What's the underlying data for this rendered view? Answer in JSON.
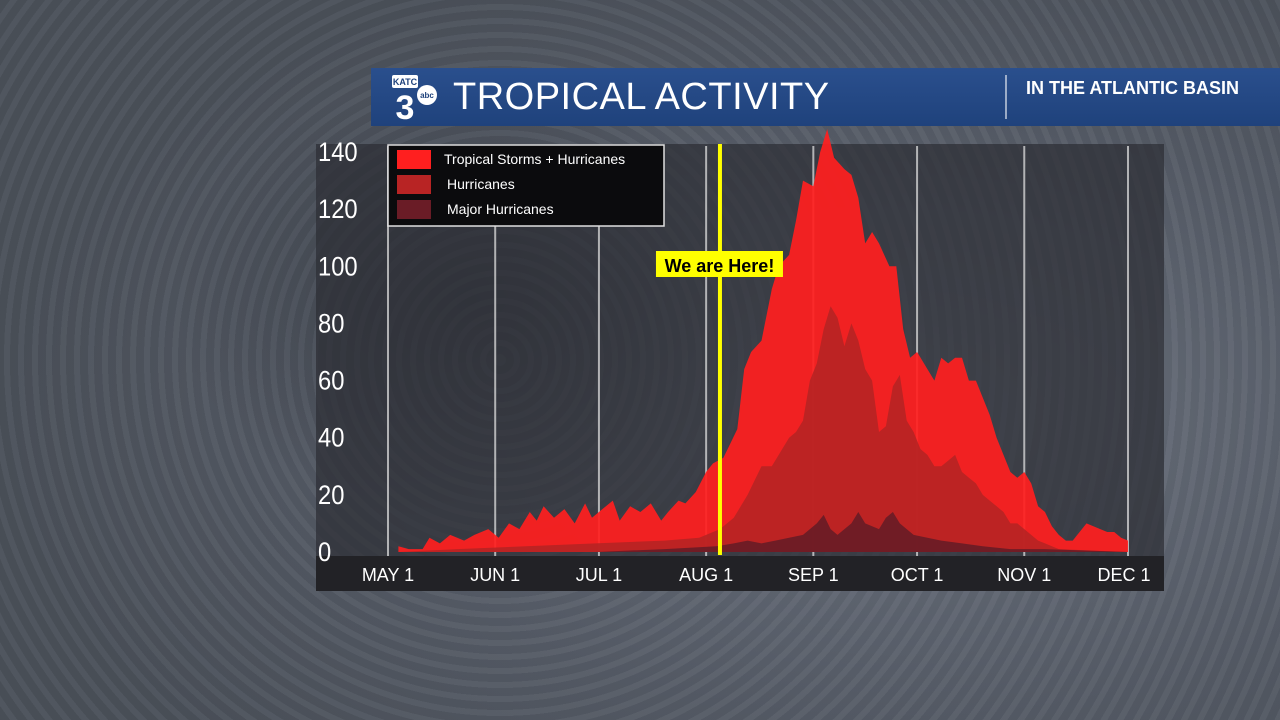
{
  "banner": {
    "title": "TROPICAL ACTIVITY",
    "subtitle": "IN THE ATLANTIC BASIN",
    "logo_text": "KATC",
    "logo_number": "3",
    "logo_network": "abc"
  },
  "colors": {
    "banner": "#1f427c",
    "tropical": "#ff1f1f",
    "hurricanes": "#b82424",
    "major": "#6a1c26",
    "marker": "#ffff00"
  },
  "chart_data": {
    "type": "area",
    "title": "",
    "xlabel": "",
    "ylabel": "",
    "ylim": [
      0,
      140
    ],
    "yticks": [
      "0",
      "20",
      "40",
      "60",
      "80",
      "100",
      "120",
      "140"
    ],
    "x_ticks": [
      {
        "label": "MAY 1",
        "day": 0
      },
      {
        "label": "JUN 1",
        "day": 31
      },
      {
        "label": "JUL 1",
        "day": 61
      },
      {
        "label": "AUG 1",
        "day": 92
      },
      {
        "label": "SEP 1",
        "day": 123
      },
      {
        "label": "OCT 1",
        "day": 153
      },
      {
        "label": "NOV 1",
        "day": 184
      },
      {
        "label": "DEC 1",
        "day": 214
      }
    ],
    "grid": true,
    "legend": "top-left",
    "marker": {
      "label": "We are Here!",
      "day": 96
    },
    "series": [
      {
        "name": "Tropical Storms + Hurricanes",
        "color": "#ff1f1f",
        "points": [
          [
            3,
            2
          ],
          [
            6,
            1
          ],
          [
            10,
            1
          ],
          [
            12,
            5
          ],
          [
            15,
            3
          ],
          [
            18,
            6
          ],
          [
            22,
            4
          ],
          [
            25,
            6
          ],
          [
            29,
            8
          ],
          [
            32,
            5
          ],
          [
            35,
            10
          ],
          [
            38,
            8
          ],
          [
            41,
            14
          ],
          [
            43,
            11
          ],
          [
            45,
            16
          ],
          [
            48,
            12
          ],
          [
            51,
            15
          ],
          [
            54,
            10
          ],
          [
            57,
            17
          ],
          [
            59,
            12
          ],
          [
            62,
            15
          ],
          [
            65,
            18
          ],
          [
            67,
            11
          ],
          [
            70,
            16
          ],
          [
            73,
            14
          ],
          [
            76,
            17
          ],
          [
            79,
            11
          ],
          [
            81,
            14
          ],
          [
            84,
            18
          ],
          [
            86,
            17
          ],
          [
            89,
            21
          ],
          [
            92,
            28
          ],
          [
            94,
            31
          ],
          [
            97,
            33
          ],
          [
            101,
            43
          ],
          [
            103,
            64
          ],
          [
            105,
            70
          ],
          [
            108,
            74
          ],
          [
            111,
            92
          ],
          [
            113,
            100
          ],
          [
            116,
            104
          ],
          [
            118,
            116
          ],
          [
            120,
            130
          ],
          [
            123,
            128
          ],
          [
            125,
            140
          ],
          [
            127,
            150
          ],
          [
            129,
            138
          ],
          [
            132,
            134
          ],
          [
            134,
            132
          ],
          [
            136,
            124
          ],
          [
            138,
            108
          ],
          [
            140,
            112
          ],
          [
            142,
            108
          ],
          [
            145,
            100
          ],
          [
            147,
            100
          ],
          [
            149,
            78
          ],
          [
            151,
            68
          ],
          [
            153,
            70
          ],
          [
            156,
            64
          ],
          [
            158,
            60
          ],
          [
            160,
            68
          ],
          [
            162,
            66
          ],
          [
            164,
            68
          ],
          [
            166,
            68
          ],
          [
            168,
            60
          ],
          [
            170,
            60
          ],
          [
            172,
            54
          ],
          [
            174,
            48
          ],
          [
            176,
            40
          ],
          [
            178,
            34
          ],
          [
            180,
            28
          ],
          [
            182,
            26
          ],
          [
            184,
            28
          ],
          [
            186,
            24
          ],
          [
            188,
            16
          ],
          [
            190,
            14
          ],
          [
            192,
            9
          ],
          [
            194,
            6
          ],
          [
            196,
            4
          ],
          [
            198,
            4
          ],
          [
            200,
            7
          ],
          [
            202,
            10
          ],
          [
            204,
            9
          ],
          [
            206,
            8
          ],
          [
            208,
            7
          ],
          [
            210,
            7
          ],
          [
            212,
            5
          ],
          [
            214,
            4
          ]
        ]
      },
      {
        "name": "Hurricanes",
        "color": "#b82424",
        "points": [
          [
            3,
            0
          ],
          [
            20,
            1
          ],
          [
            40,
            2
          ],
          [
            60,
            3
          ],
          [
            80,
            4
          ],
          [
            90,
            5
          ],
          [
            96,
            8
          ],
          [
            100,
            12
          ],
          [
            104,
            20
          ],
          [
            108,
            30
          ],
          [
            111,
            30
          ],
          [
            113,
            34
          ],
          [
            116,
            40
          ],
          [
            118,
            42
          ],
          [
            120,
            46
          ],
          [
            122,
            60
          ],
          [
            124,
            66
          ],
          [
            126,
            78
          ],
          [
            128,
            86
          ],
          [
            130,
            82
          ],
          [
            132,
            72
          ],
          [
            134,
            80
          ],
          [
            136,
            74
          ],
          [
            138,
            64
          ],
          [
            140,
            60
          ],
          [
            142,
            42
          ],
          [
            144,
            44
          ],
          [
            146,
            58
          ],
          [
            148,
            62
          ],
          [
            150,
            46
          ],
          [
            152,
            42
          ],
          [
            154,
            36
          ],
          [
            156,
            34
          ],
          [
            158,
            30
          ],
          [
            160,
            30
          ],
          [
            162,
            32
          ],
          [
            164,
            34
          ],
          [
            166,
            28
          ],
          [
            168,
            26
          ],
          [
            170,
            24
          ],
          [
            172,
            20
          ],
          [
            174,
            18
          ],
          [
            176,
            16
          ],
          [
            178,
            14
          ],
          [
            180,
            10
          ],
          [
            182,
            10
          ],
          [
            184,
            8
          ],
          [
            186,
            6
          ],
          [
            188,
            4
          ],
          [
            190,
            3
          ],
          [
            192,
            2
          ],
          [
            194,
            1
          ],
          [
            214,
            0
          ]
        ]
      },
      {
        "name": "Major Hurricanes",
        "color": "#6a1c26",
        "points": [
          [
            3,
            0
          ],
          [
            60,
            0
          ],
          [
            80,
            1
          ],
          [
            95,
            2
          ],
          [
            100,
            3
          ],
          [
            104,
            4
          ],
          [
            108,
            3
          ],
          [
            112,
            4
          ],
          [
            116,
            5
          ],
          [
            120,
            6
          ],
          [
            124,
            10
          ],
          [
            126,
            13
          ],
          [
            128,
            8
          ],
          [
            130,
            6
          ],
          [
            134,
            10
          ],
          [
            136,
            14
          ],
          [
            138,
            10
          ],
          [
            142,
            8
          ],
          [
            144,
            12
          ],
          [
            146,
            14
          ],
          [
            148,
            10
          ],
          [
            150,
            8
          ],
          [
            152,
            6
          ],
          [
            156,
            5
          ],
          [
            160,
            4
          ],
          [
            166,
            3
          ],
          [
            172,
            2
          ],
          [
            180,
            1
          ],
          [
            190,
            1
          ],
          [
            214,
            0
          ]
        ]
      }
    ]
  }
}
